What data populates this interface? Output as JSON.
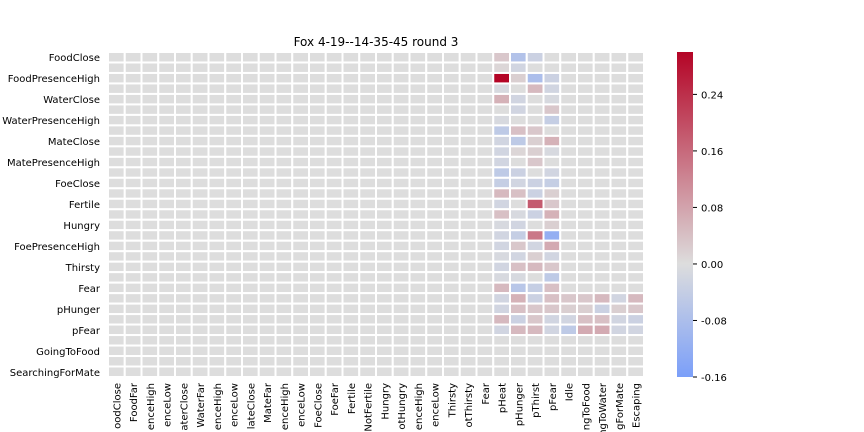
{
  "chart_data": {
    "type": "heatmap",
    "title": "Fox 4-19--14-35-45 round 3",
    "xlabel": "",
    "ylabel": "",
    "y_labels_shown": [
      "FoodClose",
      "FoodPresenceHigh",
      "WaterClose",
      "WaterPresenceHigh",
      "MateClose",
      "MatePresenceHigh",
      "FoeClose",
      "Fertile",
      "Hungry",
      "FoePresenceHigh",
      "Thirsty",
      "Fear",
      "pHunger",
      "pFear",
      "GoingToFood",
      "SearchingForMate"
    ],
    "x_labels_shown": [
      "oodClose",
      "FoodFar",
      "enceHigh",
      "enceLow",
      "aterClose",
      "WaterFar",
      "enceHigh",
      "enceLow",
      "lateClose",
      "MateFar",
      "enceHigh",
      "enceLow",
      "FoeClose",
      "FoeFar",
      "Fertile",
      "NotFertile",
      "Hungry",
      "otHungry",
      "enceHigh",
      "enceLow",
      "Thirsty",
      "otThirsty",
      "Fear",
      "pHeat",
      "pHunger",
      "pThirst",
      "pFear",
      "Idle",
      "ngToFood",
      "ngToWater",
      "gForMate",
      "Escaping"
    ],
    "n_rows": 31,
    "n_cols": 32,
    "colormap": "coolwarm",
    "color_low": "#7b9ff9",
    "color_mid": "#dddddd",
    "color_high": "#b40426",
    "vmin": -0.16,
    "vmax": 0.3,
    "colorbar_ticks": [
      "-0.16",
      "-0.08",
      "0.00",
      "0.08",
      "0.16",
      "0.24"
    ],
    "cells": [
      {
        "row": 0,
        "col": 24,
        "value": -0.07
      },
      {
        "row": 0,
        "col": 23,
        "value": 0.03
      },
      {
        "row": 0,
        "col": 25,
        "value": -0.03
      },
      {
        "row": 1,
        "col": 23,
        "value": 0.01
      },
      {
        "row": 1,
        "col": 24,
        "value": -0.02
      },
      {
        "row": 2,
        "col": 23,
        "value": 0.3
      },
      {
        "row": 2,
        "col": 24,
        "value": 0.02
      },
      {
        "row": 2,
        "col": 25,
        "value": -0.08
      },
      {
        "row": 2,
        "col": 26,
        "value": -0.03
      },
      {
        "row": 3,
        "col": 23,
        "value": -0.01
      },
      {
        "row": 3,
        "col": 25,
        "value": 0.05
      },
      {
        "row": 3,
        "col": 26,
        "value": -0.02
      },
      {
        "row": 4,
        "col": 23,
        "value": 0.06
      },
      {
        "row": 4,
        "col": 24,
        "value": -0.02
      },
      {
        "row": 4,
        "col": 26,
        "value": -0.01
      },
      {
        "row": 5,
        "col": 24,
        "value": -0.02
      },
      {
        "row": 5,
        "col": 26,
        "value": 0.03
      },
      {
        "row": 6,
        "col": 23,
        "value": -0.01
      },
      {
        "row": 6,
        "col": 26,
        "value": -0.04
      },
      {
        "row": 7,
        "col": 23,
        "value": -0.05
      },
      {
        "row": 7,
        "col": 24,
        "value": 0.04
      },
      {
        "row": 7,
        "col": 25,
        "value": 0.03
      },
      {
        "row": 8,
        "col": 23,
        "value": -0.02
      },
      {
        "row": 8,
        "col": 24,
        "value": -0.05
      },
      {
        "row": 8,
        "col": 25,
        "value": 0.02
      },
      {
        "row": 8,
        "col": 26,
        "value": 0.06
      },
      {
        "row": 9,
        "col": 23,
        "value": -0.02
      },
      {
        "row": 9,
        "col": 24,
        "value": 0.01
      },
      {
        "row": 9,
        "col": 25,
        "value": 0.02
      },
      {
        "row": 9,
        "col": 26,
        "value": -0.01
      },
      {
        "row": 10,
        "col": 23,
        "value": -0.02
      },
      {
        "row": 10,
        "col": 25,
        "value": 0.03
      },
      {
        "row": 11,
        "col": 23,
        "value": -0.05
      },
      {
        "row": 11,
        "col": 24,
        "value": -0.03
      },
      {
        "row": 11,
        "col": 26,
        "value": -0.02
      },
      {
        "row": 12,
        "col": 23,
        "value": -0.04
      },
      {
        "row": 12,
        "col": 24,
        "value": -0.02
      },
      {
        "row": 12,
        "col": 25,
        "value": -0.03
      },
      {
        "row": 12,
        "col": 26,
        "value": -0.04
      },
      {
        "row": 13,
        "col": 23,
        "value": 0.05
      },
      {
        "row": 13,
        "col": 24,
        "value": 0.04
      },
      {
        "row": 13,
        "col": 25,
        "value": -0.03
      },
      {
        "row": 13,
        "col": 26,
        "value": 0.02
      },
      {
        "row": 14,
        "col": 23,
        "value": -0.02
      },
      {
        "row": 14,
        "col": 25,
        "value": 0.18
      },
      {
        "row": 14,
        "col": 26,
        "value": 0.03
      },
      {
        "row": 15,
        "col": 23,
        "value": 0.04
      },
      {
        "row": 15,
        "col": 24,
        "value": -0.01
      },
      {
        "row": 15,
        "col": 25,
        "value": -0.03
      },
      {
        "row": 15,
        "col": 26,
        "value": 0.06
      },
      {
        "row": 16,
        "col": 23,
        "value": -0.01
      },
      {
        "row": 16,
        "col": 24,
        "value": -0.02
      },
      {
        "row": 16,
        "col": 26,
        "value": 0.02
      },
      {
        "row": 17,
        "col": 23,
        "value": -0.02
      },
      {
        "row": 17,
        "col": 24,
        "value": -0.04
      },
      {
        "row": 17,
        "col": 25,
        "value": 0.14
      },
      {
        "row": 17,
        "col": 26,
        "value": -0.12
      },
      {
        "row": 18,
        "col": 23,
        "value": -0.02
      },
      {
        "row": 18,
        "col": 24,
        "value": 0.03
      },
      {
        "row": 18,
        "col": 25,
        "value": -0.02
      },
      {
        "row": 18,
        "col": 26,
        "value": 0.07
      },
      {
        "row": 19,
        "col": 23,
        "value": -0.01
      },
      {
        "row": 19,
        "col": 24,
        "value": -0.02
      },
      {
        "row": 19,
        "col": 25,
        "value": 0.02
      },
      {
        "row": 19,
        "col": 26,
        "value": -0.02
      },
      {
        "row": 20,
        "col": 23,
        "value": -0.02
      },
      {
        "row": 20,
        "col": 24,
        "value": 0.04
      },
      {
        "row": 20,
        "col": 25,
        "value": 0.05
      },
      {
        "row": 20,
        "col": 26,
        "value": 0.03
      },
      {
        "row": 21,
        "col": 23,
        "value": -0.01
      },
      {
        "row": 21,
        "col": 24,
        "value": -0.01
      },
      {
        "row": 21,
        "col": 26,
        "value": -0.05
      },
      {
        "row": 22,
        "col": 23,
        "value": 0.05
      },
      {
        "row": 22,
        "col": 24,
        "value": -0.06
      },
      {
        "row": 22,
        "col": 25,
        "value": -0.04
      },
      {
        "row": 22,
        "col": 26,
        "value": 0.04
      },
      {
        "row": 23,
        "col": 23,
        "value": -0.02
      },
      {
        "row": 23,
        "col": 24,
        "value": 0.06
      },
      {
        "row": 23,
        "col": 25,
        "value": -0.03
      },
      {
        "row": 23,
        "col": 26,
        "value": 0.04
      },
      {
        "row": 23,
        "col": 27,
        "value": 0.03
      },
      {
        "row": 23,
        "col": 28,
        "value": 0.03
      },
      {
        "row": 23,
        "col": 29,
        "value": 0.05
      },
      {
        "row": 23,
        "col": 30,
        "value": -0.02
      },
      {
        "row": 23,
        "col": 31,
        "value": 0.05
      },
      {
        "row": 24,
        "col": 23,
        "value": -0.02
      },
      {
        "row": 24,
        "col": 24,
        "value": 0.04
      },
      {
        "row": 24,
        "col": 25,
        "value": 0.03
      },
      {
        "row": 24,
        "col": 26,
        "value": 0.03
      },
      {
        "row": 24,
        "col": 27,
        "value": 0.02
      },
      {
        "row": 24,
        "col": 28,
        "value": 0.02
      },
      {
        "row": 24,
        "col": 29,
        "value": -0.03
      },
      {
        "row": 24,
        "col": 30,
        "value": 0.02
      },
      {
        "row": 24,
        "col": 31,
        "value": 0.03
      },
      {
        "row": 25,
        "col": 23,
        "value": 0.05
      },
      {
        "row": 25,
        "col": 24,
        "value": -0.03
      },
      {
        "row": 25,
        "col": 25,
        "value": 0.03
      },
      {
        "row": 25,
        "col": 26,
        "value": -0.02
      },
      {
        "row": 25,
        "col": 27,
        "value": -0.02
      },
      {
        "row": 25,
        "col": 28,
        "value": 0.04
      },
      {
        "row": 25,
        "col": 29,
        "value": 0.04
      },
      {
        "row": 25,
        "col": 30,
        "value": -0.02
      },
      {
        "row": 25,
        "col": 31,
        "value": -0.03
      },
      {
        "row": 26,
        "col": 23,
        "value": -0.02
      },
      {
        "row": 26,
        "col": 24,
        "value": 0.05
      },
      {
        "row": 26,
        "col": 25,
        "value": 0.05
      },
      {
        "row": 26,
        "col": 26,
        "value": -0.02
      },
      {
        "row": 26,
        "col": 27,
        "value": -0.05
      },
      {
        "row": 26,
        "col": 28,
        "value": 0.07
      },
      {
        "row": 26,
        "col": 29,
        "value": 0.07
      },
      {
        "row": 26,
        "col": 30,
        "value": -0.02
      },
      {
        "row": 26,
        "col": 31,
        "value": -0.02
      }
    ]
  }
}
